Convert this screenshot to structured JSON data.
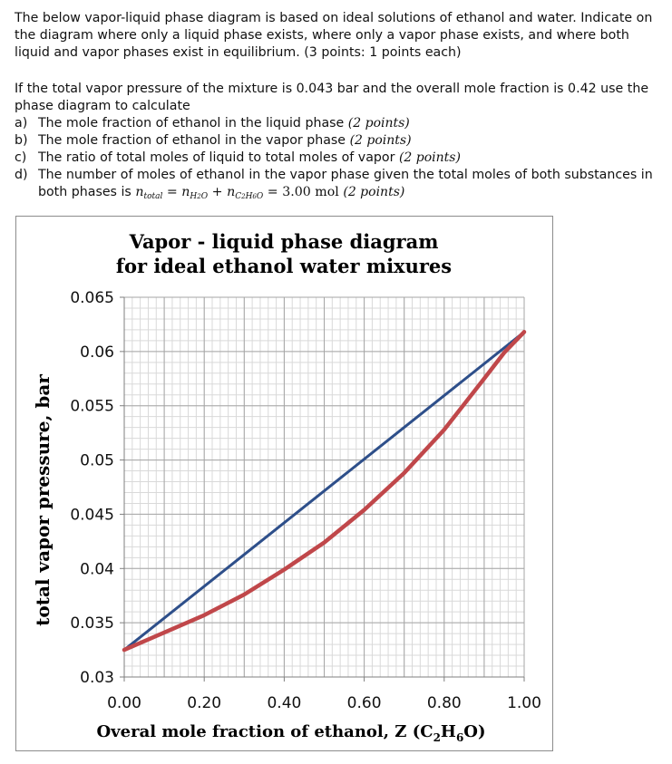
{
  "question": {
    "intro": "The below vapor-liquid phase diagram is based on ideal solutions of ethanol and water.  Indicate on the diagram where only a liquid phase exists, where only a vapor phase exists, and where both liquid and vapor phases exist in equilibrium.  (3 points: 1 points each)",
    "prompt": "If the total vapor pressure of the mixture is 0.043 bar and the overall mole fraction is 0.42 use the phase diagram to calculate",
    "items": [
      {
        "letter": "a)",
        "text": "The mole fraction of ethanol in the liquid phase ",
        "points": "(2 points)"
      },
      {
        "letter": "b)",
        "text": "The mole fraction of ethanol in the vapor phase ",
        "points": "(2 points)"
      },
      {
        "letter": "c)",
        "text": "The ratio of total moles of liquid to total moles of vapor ",
        "points": "(2 points)"
      },
      {
        "letter": "d)",
        "text": "The number of moles of ethanol in the vapor phase given the total moles of both substances in both phases is ",
        "points": "(2 points)"
      }
    ],
    "formula": {
      "n": "n",
      "total": "total",
      "h2o": "H",
      "h2o_sub": "2",
      "h2o_o": "O",
      "eth_c": "C",
      "eth_c_sub": "2",
      "eth_h": "H",
      "eth_h_sub": "6",
      "eth_o": "O",
      "value": "3.00 mol"
    }
  },
  "chart_data": {
    "type": "line",
    "title_line1": "Vapor - liquid phase diagram",
    "title_line2": "for ideal ethanol water mixures",
    "ylabel": "total vapor pressure, bar",
    "xlabel_prefix": "Overal mole fraction of ethanol, Z (C",
    "xlabel_sub1": "2",
    "xlabel_mid": "H",
    "xlabel_sub2": "6",
    "xlabel_suffix": "O)",
    "xlim": [
      0,
      1
    ],
    "ylim": [
      0.03,
      0.065
    ],
    "x_ticks": [
      "0.00",
      "0.20",
      "0.40",
      "0.60",
      "0.80",
      "1.00"
    ],
    "y_ticks": [
      "0.065",
      "0.06",
      "0.055",
      "0.05",
      "0.045",
      "0.04",
      "0.035",
      "0.03"
    ],
    "grid": true,
    "series": [
      {
        "color": "#2e4f8a",
        "x": [
          0,
          1
        ],
        "y": [
          0.0325,
          0.0618
        ]
      },
      {
        "color": "#c0474a",
        "x": [
          0,
          0.1,
          0.2,
          0.3,
          0.4,
          0.5,
          0.6,
          0.7,
          0.8,
          0.9,
          0.95,
          1.0
        ],
        "y": [
          0.0325,
          0.0341,
          0.0357,
          0.0376,
          0.0399,
          0.0424,
          0.0454,
          0.0488,
          0.0528,
          0.0575,
          0.0599,
          0.0618
        ]
      }
    ]
  }
}
